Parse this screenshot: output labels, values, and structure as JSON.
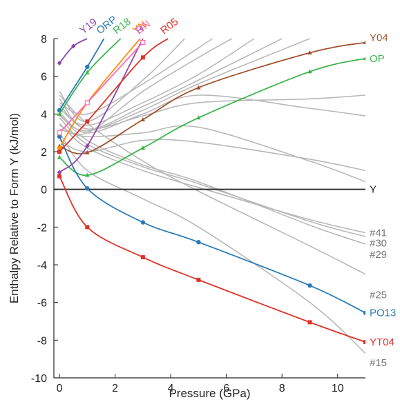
{
  "chart_data": {
    "type": "line",
    "xlabel": "Pressure (GPa)",
    "ylabel": "Enthalpy Relative to Form Y (kJ/mol)",
    "xlim": [
      -0.2,
      11
    ],
    "ylim": [
      -10,
      8
    ],
    "xticks": [
      "0",
      "2",
      "4",
      "6",
      "8",
      "10"
    ],
    "xtick_values": [
      0,
      2,
      4,
      6,
      8,
      10
    ],
    "yticks": [
      "-10",
      "-8",
      "-6",
      "-4",
      "-2",
      "0",
      "2",
      "4",
      "6",
      "8"
    ],
    "ytick_values": [
      -10,
      -8,
      -6,
      -4,
      -2,
      0,
      2,
      4,
      6,
      8
    ],
    "grid": false,
    "highlighted_series": [
      {
        "name": "Y",
        "color": "#333333",
        "marker": "none",
        "label_side": "right",
        "x": [
          -0.2,
          11
        ],
        "y": [
          0,
          0
        ]
      },
      {
        "name": "Y04",
        "color": "#a0522d",
        "marker": "triangle",
        "label_side": "right",
        "x": [
          0,
          1,
          3,
          5,
          9,
          11
        ],
        "y": [
          2.3,
          1.95,
          3.7,
          5.4,
          7.25,
          7.8
        ]
      },
      {
        "name": "OP",
        "color": "#3cb44b",
        "marker": "triangle",
        "label_side": "right",
        "x": [
          0,
          1,
          3,
          5,
          9,
          11
        ],
        "y": [
          1.7,
          0.75,
          2.2,
          3.8,
          6.25,
          6.95
        ]
      },
      {
        "name": "PO13",
        "color": "#2a7ab8",
        "marker": "circle",
        "label_side": "right",
        "x": [
          0,
          1,
          3,
          5,
          9,
          11
        ],
        "y": [
          2.8,
          0.05,
          -1.75,
          -2.8,
          -5.1,
          -6.55
        ]
      },
      {
        "name": "YT04",
        "color": "#e03228",
        "marker": "square",
        "label_side": "right",
        "x": [
          0,
          1,
          3,
          5,
          9,
          11
        ],
        "y": [
          0.7,
          -2.0,
          -3.6,
          -4.8,
          -7.05,
          -8.1
        ]
      },
      {
        "name": "Y19",
        "color": "#8e44ad",
        "marker": "diamond",
        "label_side": "top",
        "x": [
          0,
          0.5,
          1.0
        ],
        "y": [
          6.7,
          7.6,
          8.0
        ]
      },
      {
        "name": "ORP",
        "color": "#2a7ab8",
        "marker": "circle",
        "label_side": "top",
        "x": [
          0,
          1,
          1.6
        ],
        "y": [
          4.2,
          6.5,
          8.0
        ]
      },
      {
        "name": "R18",
        "color": "#3cb44b",
        "marker": "triangle",
        "label_side": "top",
        "x": [
          0,
          1,
          2.2
        ],
        "y": [
          4.0,
          6.2,
          8.0
        ]
      },
      {
        "name": "YN",
        "color": "#ff8c00",
        "marker": "circle",
        "label_side": "top",
        "x": [
          0,
          1,
          2.9
        ],
        "y": [
          2.2,
          4.6,
          8.0
        ]
      },
      {
        "name": "R",
        "color": "#8e44ad",
        "marker": "diamond",
        "label_side": "top",
        "x": [
          0,
          1,
          3.0
        ],
        "y": [
          0.9,
          2.3,
          8.0
        ]
      },
      {
        "name": "ON",
        "color": "#ff69b4",
        "marker": "square-open",
        "label_side": "top",
        "x": [
          0,
          1,
          3.0
        ],
        "y": [
          3.0,
          4.6,
          7.8
        ]
      },
      {
        "name": "R05",
        "color": "#e03228",
        "marker": "square",
        "label_side": "top",
        "x": [
          0,
          1,
          3,
          3.9
        ],
        "y": [
          2.0,
          3.6,
          7.0,
          8.0
        ]
      }
    ],
    "gray_series_labels": [
      "#41",
      "#30",
      "#29",
      "#25",
      "#15"
    ],
    "gray_series": [
      {
        "name": "#41",
        "x": [
          0,
          1,
          3,
          5,
          9,
          11
        ],
        "y": [
          3.5,
          2.2,
          1.0,
          0.1,
          -1.6,
          -2.3
        ]
      },
      {
        "name": "#30",
        "x": [
          0,
          1,
          3,
          5,
          9,
          11
        ],
        "y": [
          3.8,
          2.4,
          1.2,
          0.3,
          -1.7,
          -2.5
        ]
      },
      {
        "name": "#29",
        "x": [
          0,
          1,
          3,
          5,
          9,
          11
        ],
        "y": [
          4.0,
          2.6,
          1.3,
          0.4,
          -1.9,
          -2.9
        ]
      },
      {
        "name": "#25",
        "x": [
          0,
          1,
          3,
          5,
          9,
          11
        ],
        "y": [
          5.0,
          3.5,
          1.5,
          -0.1,
          -3.0,
          -4.5
        ]
      },
      {
        "name": "#15",
        "x": [
          0,
          1,
          3,
          5,
          9,
          11
        ],
        "y": [
          3.0,
          1.0,
          -0.5,
          -2.0,
          -6.0,
          -8.7
        ]
      },
      {
        "name": "",
        "x": [
          0,
          1,
          3,
          5,
          9,
          11
        ],
        "y": [
          4.5,
          3.2,
          3.9,
          4.6,
          4.8,
          5.0
        ]
      },
      {
        "name": "",
        "x": [
          0,
          1,
          3,
          5,
          9,
          11
        ],
        "y": [
          3.2,
          2.8,
          3.0,
          3.3,
          1.5,
          0.4
        ]
      },
      {
        "name": "",
        "x": [
          0,
          1,
          3,
          5,
          9,
          11
        ],
        "y": [
          4.1,
          3.0,
          4.0,
          5.0,
          4.3,
          3.9
        ]
      },
      {
        "name": "",
        "x": [
          0,
          1,
          3,
          5,
          9
        ],
        "y": [
          3.9,
          3.1,
          4.2,
          5.6,
          8.0
        ]
      },
      {
        "name": "",
        "x": [
          0,
          1,
          3,
          5,
          7.0
        ],
        "y": [
          4.3,
          3.4,
          4.6,
          6.1,
          8.0
        ]
      },
      {
        "name": "",
        "x": [
          0,
          1,
          3,
          5,
          8.0
        ],
        "y": [
          4.8,
          3.2,
          4.4,
          5.8,
          8.0
        ]
      },
      {
        "name": "",
        "x": [
          0,
          1,
          3,
          4.5
        ],
        "y": [
          5.2,
          3.6,
          5.8,
          8.0
        ]
      },
      {
        "name": "",
        "x": [
          0,
          1,
          3,
          5,
          6.2
        ],
        "y": [
          3.4,
          3.0,
          5.2,
          7.0,
          8.0
        ]
      },
      {
        "name": "",
        "x": [
          0,
          1,
          3,
          5.5
        ],
        "y": [
          4.6,
          4.0,
          5.6,
          8.0
        ]
      },
      {
        "name": "",
        "x": [
          0,
          1,
          3,
          5,
          9,
          11
        ],
        "y": [
          2.6,
          2.0,
          2.6,
          2.5,
          1.6,
          1.0
        ]
      }
    ]
  }
}
